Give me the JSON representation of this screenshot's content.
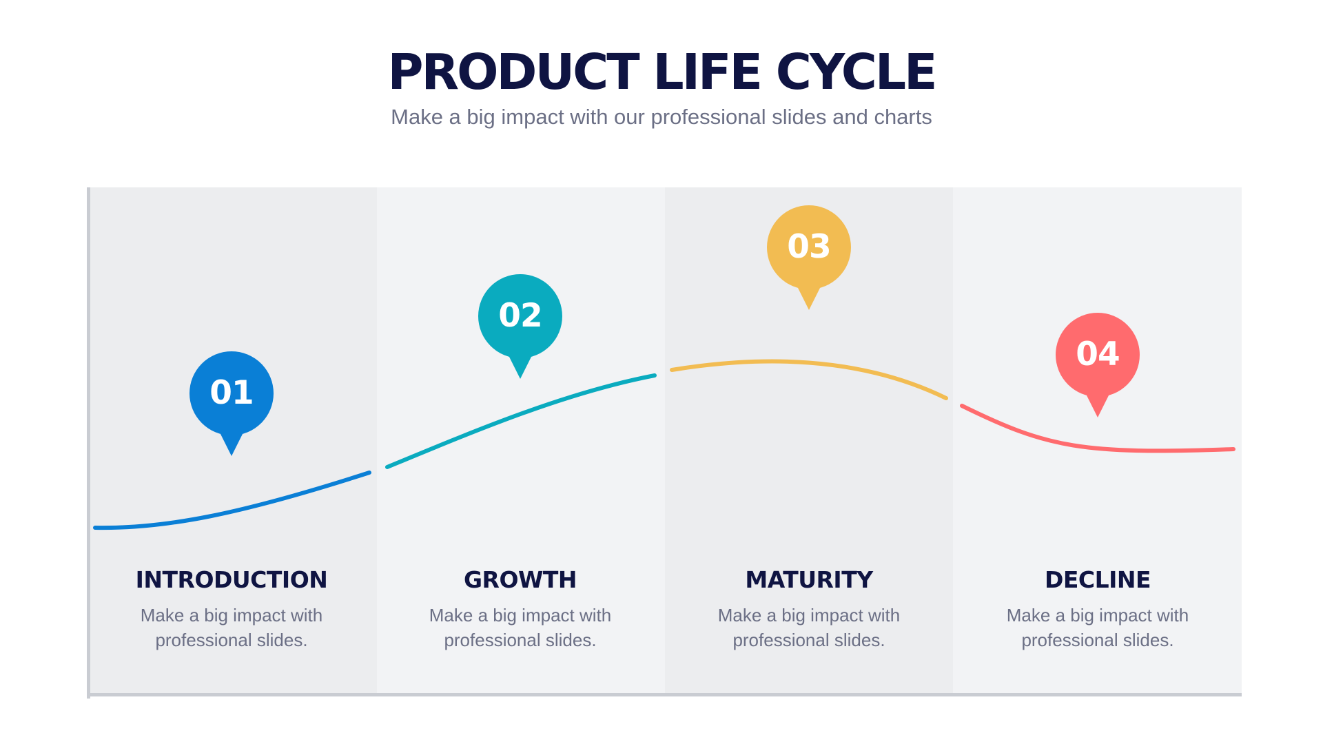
{
  "header": {
    "title": "PRODUCT LIFE CYCLE",
    "subtitle": "Make a big impact with our professional slides and charts"
  },
  "stages": [
    {
      "number": "01",
      "title": "INTRODUCTION",
      "desc_line1": "Make a big impact with",
      "desc_line2": "professional slides.",
      "color": "#0a7fd6"
    },
    {
      "number": "02",
      "title": "GROWTH",
      "desc_line1": "Make a big impact with",
      "desc_line2": "professional slides.",
      "color": "#0aabbf"
    },
    {
      "number": "03",
      "title": "MATURITY",
      "desc_line1": "Make a big impact with",
      "desc_line2": "professional slides.",
      "color": "#f2bc52"
    },
    {
      "number": "04",
      "title": "DECLINE",
      "desc_line1": "Make a big impact with",
      "desc_line2": "professional slides.",
      "color": "#ff6b6e"
    }
  ],
  "colors": {
    "title": "#0f1442",
    "text": "#6b6f85",
    "panel_dark": "#ecedef",
    "panel_light": "#f2f3f5",
    "axis": "#c9ccd2"
  }
}
